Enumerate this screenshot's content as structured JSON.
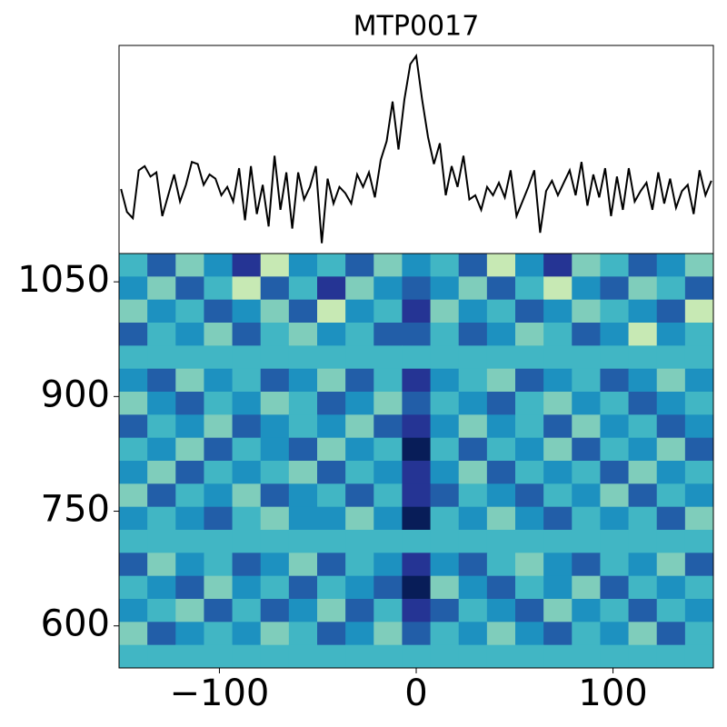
{
  "chart_data": [
    {
      "type": "line",
      "title": "MTP0017",
      "color": "#000000",
      "x": [
        -150,
        -147,
        -144,
        -141,
        -138,
        -135,
        -132,
        -129,
        -126,
        -123,
        -120,
        -117,
        -114,
        -111,
        -108,
        -105,
        -102,
        -99,
        -96,
        -93,
        -90,
        -87,
        -84,
        -81,
        -78,
        -75,
        -72,
        -69,
        -66,
        -63,
        -60,
        -57,
        -54,
        -51,
        -48,
        -45,
        -42,
        -39,
        -36,
        -33,
        -30,
        -27,
        -24,
        -21,
        -18,
        -15,
        -12,
        -9,
        -6,
        -3,
        0,
        3,
        6,
        9,
        12,
        15,
        18,
        21,
        24,
        27,
        30,
        33,
        36,
        39,
        42,
        45,
        48,
        51,
        54,
        57,
        60,
        63,
        66,
        69,
        72,
        75,
        78,
        81,
        84,
        87,
        90,
        93,
        96,
        99,
        102,
        105,
        108,
        111,
        114,
        117,
        120,
        123,
        126,
        129,
        132,
        135,
        138,
        141,
        144,
        147,
        150
      ],
      "values": [
        0.31,
        0.2,
        0.17,
        0.4,
        0.42,
        0.37,
        0.39,
        0.18,
        0.28,
        0.38,
        0.25,
        0.33,
        0.44,
        0.43,
        0.33,
        0.38,
        0.36,
        0.28,
        0.32,
        0.25,
        0.41,
        0.16,
        0.42,
        0.19,
        0.33,
        0.13,
        0.47,
        0.21,
        0.39,
        0.12,
        0.39,
        0.26,
        0.32,
        0.42,
        0.05,
        0.36,
        0.24,
        0.32,
        0.29,
        0.24,
        0.38,
        0.32,
        0.39,
        0.27,
        0.45,
        0.54,
        0.73,
        0.5,
        0.74,
        0.91,
        0.95,
        0.74,
        0.56,
        0.43,
        0.53,
        0.28,
        0.42,
        0.32,
        0.47,
        0.26,
        0.28,
        0.21,
        0.32,
        0.28,
        0.34,
        0.27,
        0.4,
        0.18,
        0.25,
        0.32,
        0.4,
        0.1,
        0.3,
        0.35,
        0.28,
        0.34,
        0.4,
        0.28,
        0.44,
        0.23,
        0.38,
        0.27,
        0.41,
        0.18,
        0.37,
        0.21,
        0.41,
        0.25,
        0.3,
        0.34,
        0.21,
        0.39,
        0.24,
        0.36,
        0.22,
        0.3,
        0.33,
        0.19,
        0.4,
        0.28,
        0.35
      ],
      "xlim": [
        -151,
        151
      ],
      "ylim": [
        0,
        1
      ]
    },
    {
      "type": "heatmap",
      "xlim": [
        -151,
        151
      ],
      "ylim": [
        545,
        1087
      ],
      "xticks": [
        {
          "value": -100,
          "label": "−100"
        },
        0,
        100
      ],
      "yticks": [
        600,
        750,
        900,
        1050
      ],
      "clim": [
        0,
        8
      ],
      "colormap": [
        "#ffffd9",
        "#edf8b1",
        "#c7e9b4",
        "#7fcdbb",
        "#41b6c4",
        "#1d91c0",
        "#225ea8",
        "#253494",
        "#081d58"
      ],
      "values": [
        [
          4,
          6,
          3,
          5,
          7,
          2,
          5,
          4,
          6,
          3,
          5,
          4,
          6,
          2,
          5,
          7,
          3,
          4,
          6,
          5,
          3
        ],
        [
          5,
          3,
          6,
          4,
          2,
          6,
          4,
          7,
          3,
          5,
          6,
          5,
          3,
          6,
          4,
          2,
          5,
          6,
          3,
          4,
          6
        ],
        [
          3,
          5,
          4,
          6,
          5,
          3,
          6,
          2,
          5,
          4,
          7,
          3,
          5,
          4,
          6,
          5,
          3,
          4,
          5,
          6,
          2
        ],
        [
          6,
          4,
          5,
          3,
          6,
          4,
          3,
          5,
          4,
          6,
          6,
          4,
          6,
          5,
          3,
          4,
          6,
          5,
          2,
          5,
          4
        ],
        [
          4,
          4,
          4,
          4,
          4,
          4,
          4,
          4,
          4,
          4,
          4,
          4,
          4,
          4,
          4,
          4,
          4,
          4,
          4,
          4,
          4
        ],
        [
          5,
          6,
          3,
          5,
          4,
          6,
          5,
          3,
          6,
          4,
          7,
          5,
          4,
          3,
          6,
          5,
          4,
          6,
          5,
          3,
          5
        ],
        [
          3,
          5,
          6,
          4,
          5,
          3,
          4,
          6,
          5,
          3,
          6,
          4,
          5,
          6,
          4,
          3,
          5,
          4,
          6,
          5,
          4
        ],
        [
          6,
          4,
          5,
          3,
          6,
          5,
          4,
          5,
          3,
          6,
          7,
          5,
          3,
          5,
          4,
          6,
          3,
          5,
          4,
          6,
          5
        ],
        [
          4,
          5,
          3,
          6,
          4,
          5,
          6,
          3,
          5,
          4,
          8,
          4,
          6,
          4,
          5,
          3,
          6,
          4,
          5,
          3,
          6
        ],
        [
          5,
          3,
          6,
          4,
          5,
          4,
          3,
          6,
          4,
          5,
          7,
          5,
          3,
          6,
          4,
          5,
          4,
          6,
          3,
          5,
          4
        ],
        [
          3,
          6,
          4,
          5,
          3,
          6,
          5,
          4,
          6,
          4,
          7,
          6,
          4,
          5,
          6,
          4,
          5,
          3,
          6,
          4,
          5
        ],
        [
          5,
          4,
          5,
          6,
          4,
          3,
          5,
          5,
          3,
          5,
          8,
          4,
          5,
          3,
          5,
          6,
          4,
          5,
          4,
          6,
          3
        ],
        [
          4,
          4,
          4,
          4,
          4,
          4,
          4,
          4,
          4,
          4,
          4,
          4,
          4,
          4,
          4,
          4,
          4,
          4,
          4,
          4,
          4
        ],
        [
          6,
          3,
          5,
          4,
          6,
          5,
          3,
          6,
          4,
          5,
          7,
          5,
          6,
          4,
          3,
          5,
          6,
          4,
          5,
          3,
          6
        ],
        [
          4,
          5,
          6,
          3,
          5,
          4,
          6,
          4,
          5,
          6,
          8,
          3,
          5,
          6,
          4,
          5,
          3,
          6,
          4,
          5,
          4
        ],
        [
          5,
          4,
          3,
          6,
          4,
          6,
          5,
          3,
          6,
          4,
          7,
          6,
          4,
          5,
          6,
          3,
          5,
          4,
          6,
          4,
          5
        ],
        [
          3,
          6,
          5,
          4,
          5,
          3,
          4,
          6,
          5,
          3,
          6,
          4,
          5,
          3,
          5,
          6,
          4,
          5,
          3,
          6,
          4
        ],
        [
          4,
          4,
          4,
          4,
          4,
          4,
          4,
          4,
          4,
          4,
          4,
          4,
          4,
          4,
          4,
          4,
          4,
          4,
          4,
          4,
          4
        ]
      ]
    }
  ]
}
